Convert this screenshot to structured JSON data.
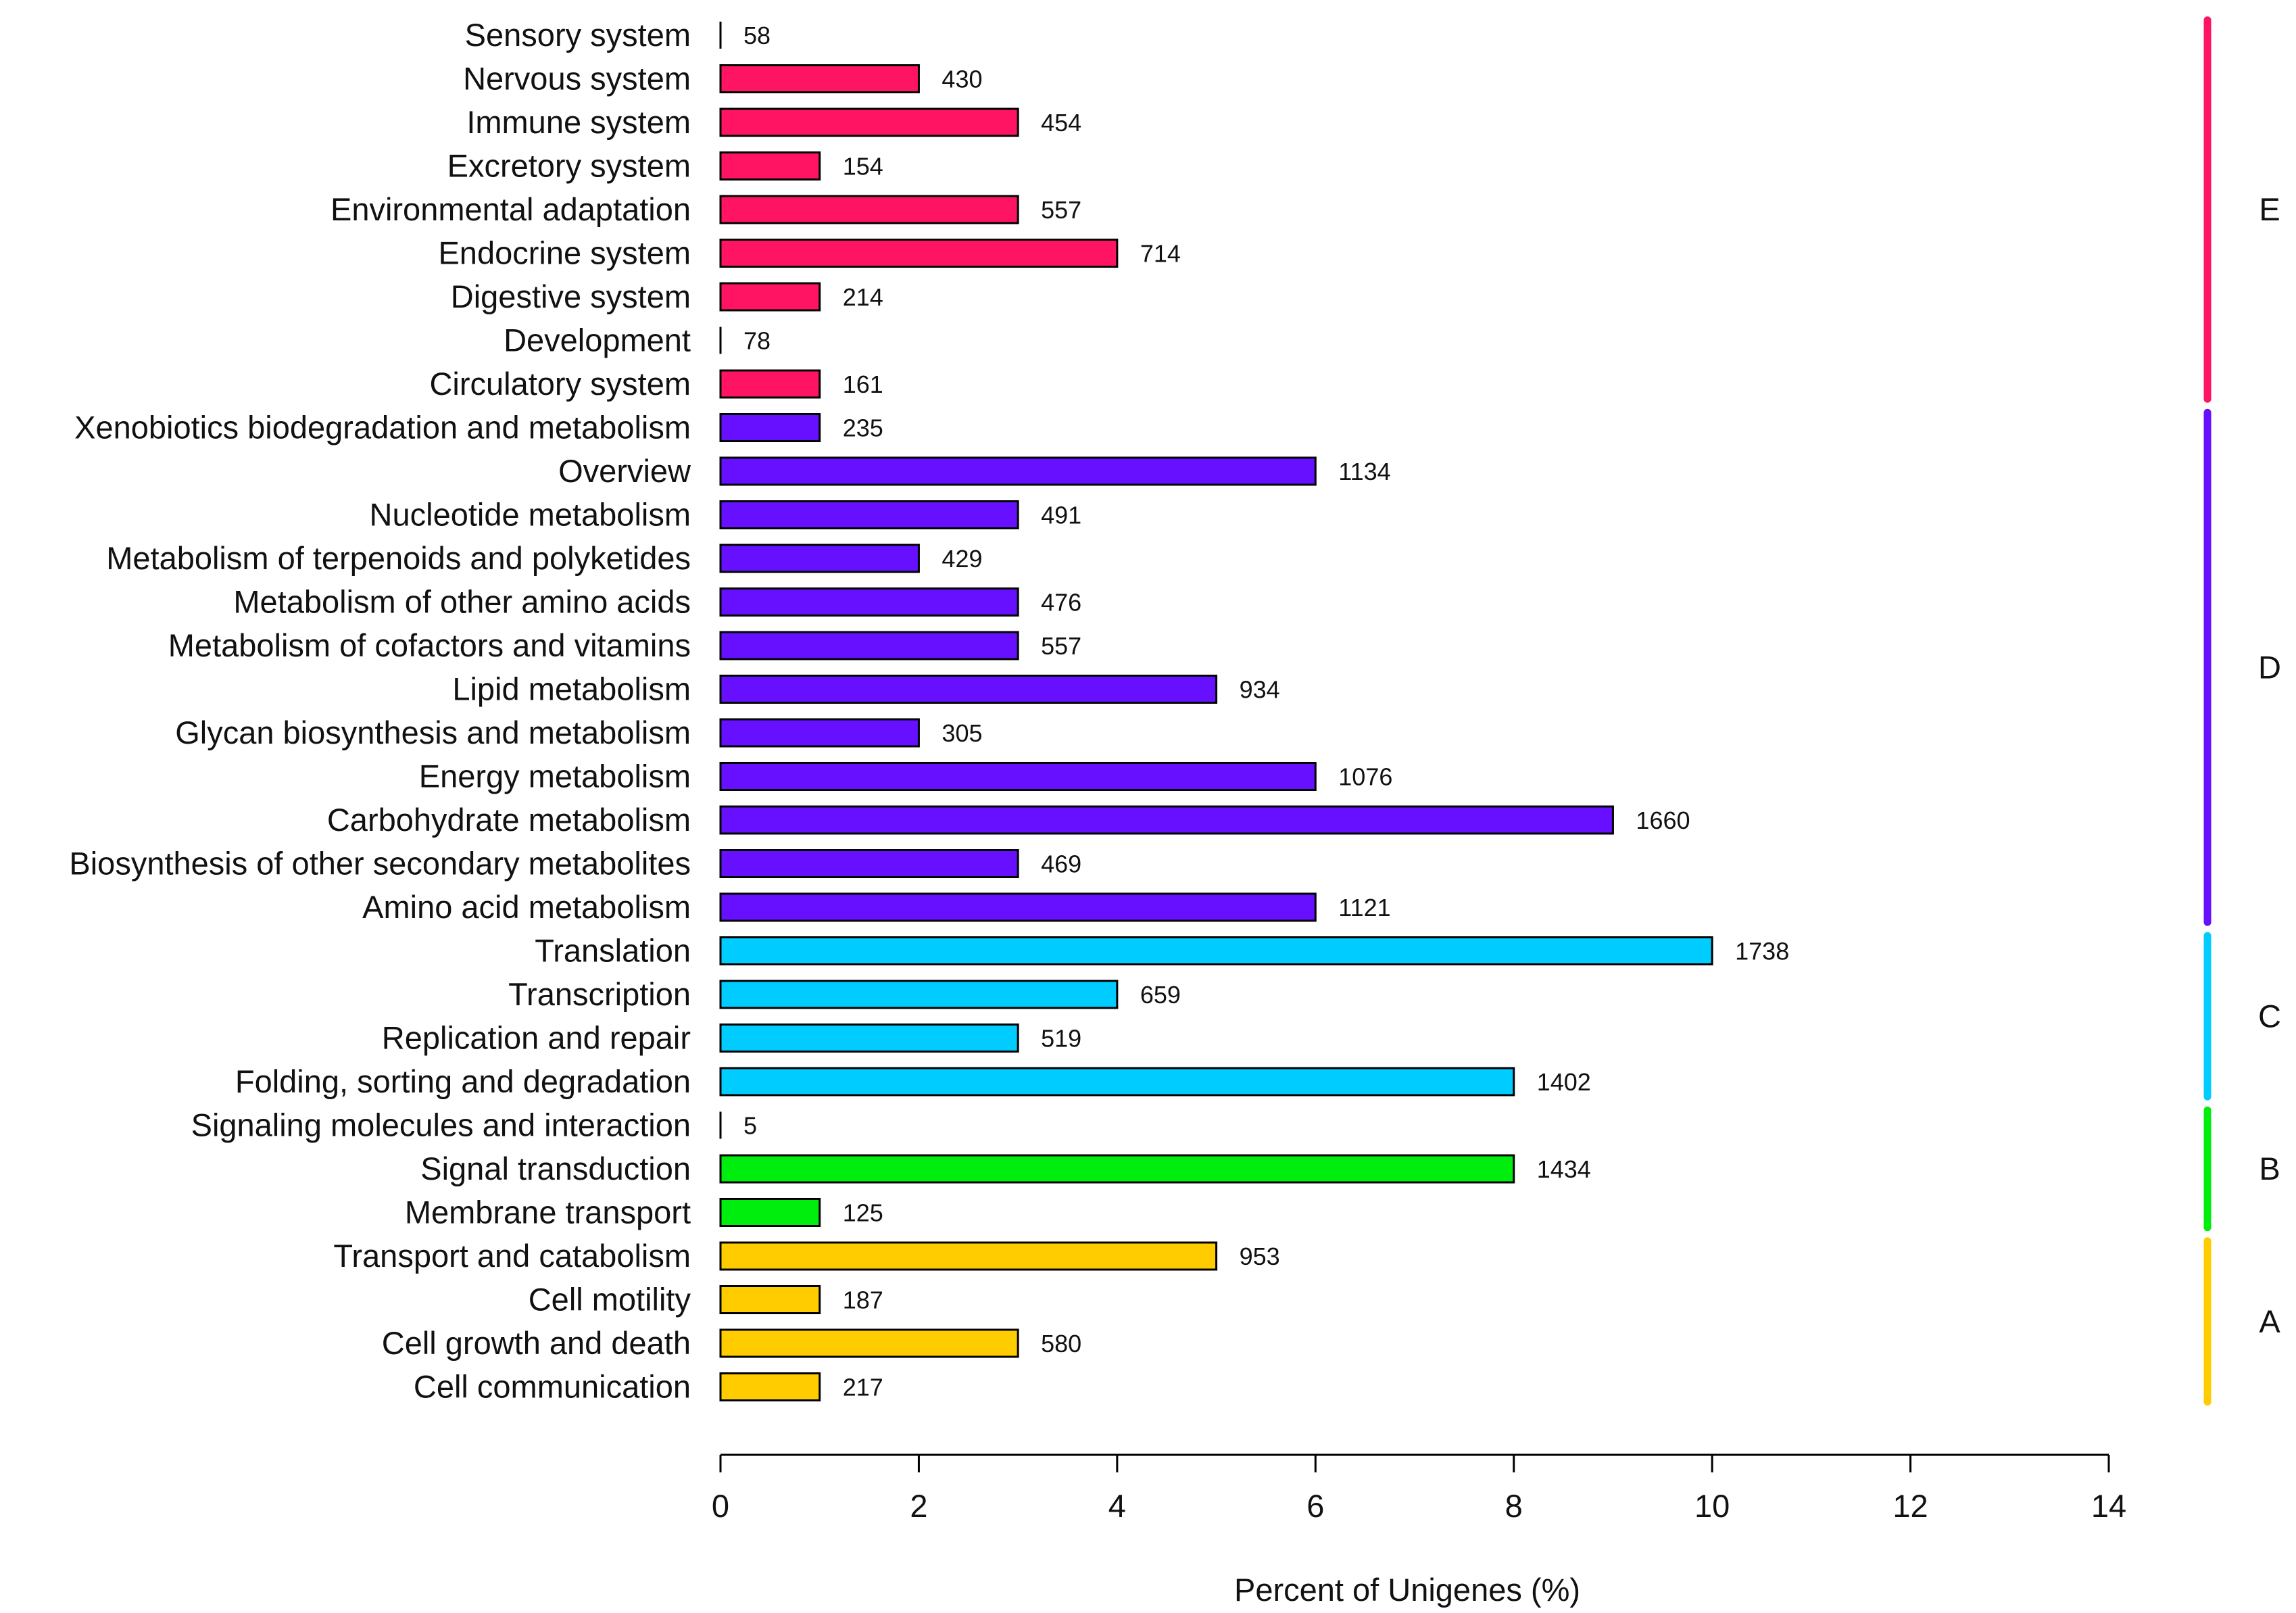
{
  "chart_data": {
    "type": "bar",
    "orientation": "horizontal",
    "title": "",
    "xlabel": "Percent of  Unigenes (%)",
    "ylabel": "",
    "xlim": [
      0,
      14
    ],
    "xticks": [
      0,
      2,
      4,
      6,
      8,
      10,
      12,
      14
    ],
    "grid": false,
    "groups": [
      {
        "name": "E",
        "color": "#FF1464"
      },
      {
        "name": "D",
        "color": "#6610FF"
      },
      {
        "name": "C",
        "color": "#00CCFF"
      },
      {
        "name": "B",
        "color": "#00EE0E"
      },
      {
        "name": "A",
        "color": "#FFCC00"
      }
    ],
    "bars": [
      {
        "category": "Sensory system",
        "percent": 0.0,
        "count": "58",
        "group": "E"
      },
      {
        "category": "Nervous system",
        "percent": 2.0,
        "count": "430",
        "group": "E"
      },
      {
        "category": "Immune system",
        "percent": 3.0,
        "count": "454",
        "group": "E"
      },
      {
        "category": "Excretory system",
        "percent": 1.0,
        "count": "154",
        "group": "E"
      },
      {
        "category": "Environmental adaptation",
        "percent": 3.0,
        "count": "557",
        "group": "E"
      },
      {
        "category": "Endocrine system",
        "percent": 4.0,
        "count": "714",
        "group": "E"
      },
      {
        "category": "Digestive system",
        "percent": 1.0,
        "count": "214",
        "group": "E"
      },
      {
        "category": "Development",
        "percent": 0.0,
        "count": "78",
        "group": "E"
      },
      {
        "category": "Circulatory system",
        "percent": 1.0,
        "count": "161",
        "group": "E"
      },
      {
        "category": "Xenobiotics biodegradation and metabolism",
        "percent": 1.0,
        "count": "235",
        "group": "D"
      },
      {
        "category": "Overview",
        "percent": 6.0,
        "count": "1134",
        "group": "D"
      },
      {
        "category": "Nucleotide metabolism",
        "percent": 3.0,
        "count": "491",
        "group": "D"
      },
      {
        "category": "Metabolism of terpenoids and polyketides",
        "percent": 2.0,
        "count": "429",
        "group": "D"
      },
      {
        "category": "Metabolism of other amino acids",
        "percent": 3.0,
        "count": "476",
        "group": "D"
      },
      {
        "category": "Metabolism of cofactors and vitamins",
        "percent": 3.0,
        "count": "557",
        "group": "D"
      },
      {
        "category": "Lipid metabolism",
        "percent": 5.0,
        "count": "934",
        "group": "D"
      },
      {
        "category": "Glycan biosynthesis and metabolism",
        "percent": 2.0,
        "count": "305",
        "group": "D"
      },
      {
        "category": "Energy metabolism",
        "percent": 6.0,
        "count": "1076",
        "group": "D"
      },
      {
        "category": "Carbohydrate metabolism",
        "percent": 9.0,
        "count": "1660",
        "group": "D"
      },
      {
        "category": "Biosynthesis of other secondary metabolites",
        "percent": 3.0,
        "count": "469",
        "group": "D"
      },
      {
        "category": "Amino acid metabolism",
        "percent": 6.0,
        "count": "1121",
        "group": "D"
      },
      {
        "category": "Translation",
        "percent": 10.0,
        "count": "1738",
        "group": "C"
      },
      {
        "category": "Transcription",
        "percent": 4.0,
        "count": "659",
        "group": "C"
      },
      {
        "category": "Replication and repair",
        "percent": 3.0,
        "count": "519",
        "group": "C"
      },
      {
        "category": "Folding, sorting and degradation",
        "percent": 8.0,
        "count": "1402",
        "group": "C"
      },
      {
        "category": "Signaling molecules and interaction",
        "percent": 0.0,
        "count": "5",
        "group": "B"
      },
      {
        "category": "Signal transduction",
        "percent": 8.0,
        "count": "1434",
        "group": "B"
      },
      {
        "category": "Membrane transport",
        "percent": 1.0,
        "count": "125",
        "group": "B"
      },
      {
        "category": "Transport and catabolism",
        "percent": 5.0,
        "count": "953",
        "group": "A"
      },
      {
        "category": "Cell motility",
        "percent": 1.0,
        "count": "187",
        "group": "A"
      },
      {
        "category": "Cell growth and death",
        "percent": 3.0,
        "count": "580",
        "group": "A"
      },
      {
        "category": "Cell communication",
        "percent": 1.0,
        "count": "217",
        "group": "A"
      }
    ]
  }
}
